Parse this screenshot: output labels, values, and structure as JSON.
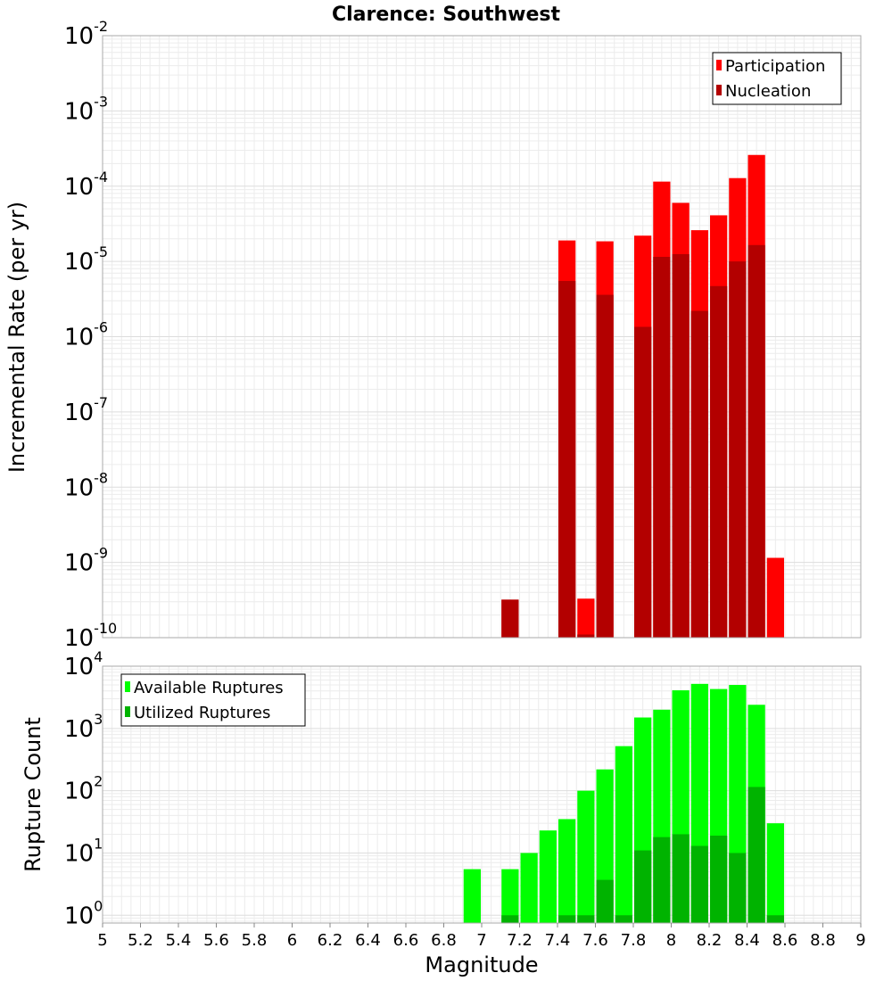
{
  "chart_data": [
    {
      "type": "bar",
      "title": "Clarence: Southwest",
      "xlabel": "Magnitude",
      "ylabel": "Incremental Rate (per yr)",
      "yscale": "log",
      "ylim": [
        1e-10,
        0.01
      ],
      "xlim": [
        5,
        9
      ],
      "y_tick_exponents": [
        "-10",
        "-9",
        "-8",
        "-7",
        "-6",
        "-5",
        "-4",
        "-3",
        "-2"
      ],
      "y_tick_base": "10",
      "bar_width": 0.1,
      "grid": true,
      "legend_position": "top-right",
      "series": [
        {
          "name": "Participation",
          "color": "#ff0000",
          "x": [
            7.15,
            7.45,
            7.55,
            7.65,
            7.85,
            7.95,
            8.05,
            8.15,
            8.25,
            8.35,
            8.45,
            8.55
          ],
          "values": [
            3.2e-10,
            1.9e-05,
            3.3e-10,
            1.85e-05,
            2.2e-05,
            0.000115,
            6e-05,
            2.6e-05,
            4.1e-05,
            0.000128,
            0.00026,
            1.15e-09
          ]
        },
        {
          "name": "Nucleation",
          "color": "#b30000",
          "x": [
            7.15,
            7.45,
            7.55,
            7.65,
            7.85,
            7.95,
            8.05,
            8.15,
            8.25,
            8.35,
            8.45
          ],
          "values": [
            3.2e-10,
            5.5e-06,
            1.1e-10,
            3.6e-06,
            1.35e-06,
            1.15e-05,
            1.25e-05,
            2.2e-06,
            4.7e-06,
            1e-05,
            1.65e-05
          ]
        }
      ]
    },
    {
      "type": "bar",
      "xlabel": "Magnitude",
      "ylabel": "Rupture Count",
      "yscale": "log",
      "ylim": [
        0.75,
        10000
      ],
      "xlim": [
        5,
        9
      ],
      "y_tick_exponents": [
        "0",
        "1",
        "2",
        "3",
        "4"
      ],
      "y_tick_base": "10",
      "x_ticks": [
        "5",
        "5.2",
        "5.4",
        "5.6",
        "5.8",
        "6",
        "6.2",
        "6.4",
        "6.6",
        "6.8",
        "7",
        "7.2",
        "7.4",
        "7.6",
        "7.8",
        "8",
        "8.2",
        "8.4",
        "8.6",
        "8.8",
        "9"
      ],
      "bar_width": 0.1,
      "grid": true,
      "legend_position": "top-left",
      "series": [
        {
          "name": "Available Ruptures",
          "color": "#00ff00",
          "x": [
            6.95,
            7.15,
            7.25,
            7.35,
            7.45,
            7.55,
            7.65,
            7.75,
            7.85,
            7.95,
            8.05,
            8.15,
            8.25,
            8.35,
            8.45,
            8.55
          ],
          "values": [
            5.5,
            5.5,
            10,
            23,
            35,
            100,
            220,
            520,
            1500,
            2000,
            4100,
            5200,
            4300,
            5000,
            2400,
            30
          ]
        },
        {
          "name": "Utilized Ruptures",
          "color": "#00b300",
          "x": [
            7.15,
            7.45,
            7.55,
            7.65,
            7.75,
            7.85,
            7.95,
            8.05,
            8.15,
            8.25,
            8.35,
            8.45,
            8.55
          ],
          "values": [
            1,
            1,
            1,
            3.7,
            1,
            11,
            18,
            20,
            13,
            19,
            10,
            115,
            1
          ]
        }
      ]
    }
  ]
}
